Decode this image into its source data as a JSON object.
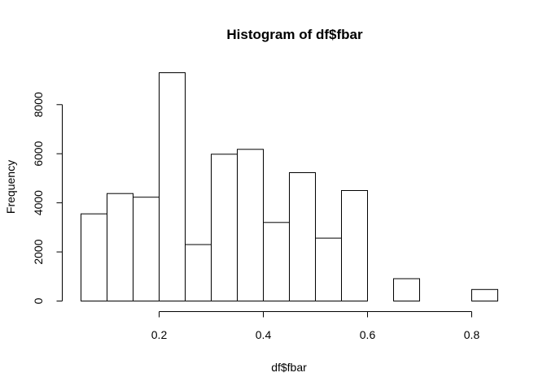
{
  "chart_data": {
    "type": "bar",
    "title": "Histogram of df$fbar",
    "xlabel": "df$fbar",
    "ylabel": "Frequency",
    "bins": [
      {
        "start": 0.05,
        "end": 0.1,
        "count": 3550
      },
      {
        "start": 0.1,
        "end": 0.15,
        "count": 4380
      },
      {
        "start": 0.15,
        "end": 0.2,
        "count": 4230
      },
      {
        "start": 0.2,
        "end": 0.25,
        "count": 9300
      },
      {
        "start": 0.25,
        "end": 0.3,
        "count": 2300
      },
      {
        "start": 0.3,
        "end": 0.35,
        "count": 5980
      },
      {
        "start": 0.35,
        "end": 0.4,
        "count": 6180
      },
      {
        "start": 0.4,
        "end": 0.45,
        "count": 3200
      },
      {
        "start": 0.45,
        "end": 0.5,
        "count": 5230
      },
      {
        "start": 0.5,
        "end": 0.55,
        "count": 2560
      },
      {
        "start": 0.55,
        "end": 0.6,
        "count": 4500
      },
      {
        "start": 0.6,
        "end": 0.65,
        "count": 0
      },
      {
        "start": 0.65,
        "end": 0.7,
        "count": 910
      },
      {
        "start": 0.7,
        "end": 0.75,
        "count": 0
      },
      {
        "start": 0.75,
        "end": 0.8,
        "count": 0
      },
      {
        "start": 0.8,
        "end": 0.85,
        "count": 470
      }
    ],
    "xlim": [
      0.05,
      0.85
    ],
    "ylim": [
      0,
      9300
    ],
    "x_ticks": [
      0.2,
      0.4,
      0.6,
      0.8
    ],
    "x_tick_labels": [
      "0.2",
      "0.4",
      "0.6",
      "0.8"
    ],
    "y_ticks": [
      0,
      2000,
      4000,
      6000,
      8000
    ],
    "y_tick_labels": [
      "0",
      "2000",
      "4000",
      "6000",
      "8000"
    ],
    "grid": false,
    "colors": {
      "bar_fill": "#ffffff",
      "bar_stroke": "#000000"
    }
  }
}
